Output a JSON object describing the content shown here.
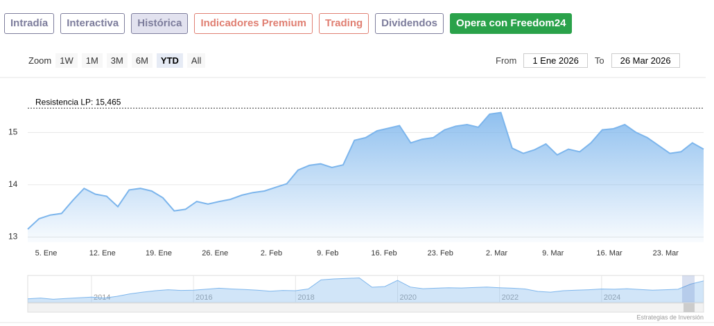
{
  "tabs": [
    {
      "label": "Intradía",
      "color": "#7d7d9c"
    },
    {
      "label": "Interactiva",
      "color": "#7d7d9c"
    },
    {
      "label": "Histórica",
      "color": "#7d7d9c"
    },
    {
      "label": "Indicadores Premium",
      "color": "#e07f72"
    },
    {
      "label": "Trading",
      "color": "#e07f72"
    },
    {
      "label": "Dividendos",
      "color": "#7d7d9c"
    },
    {
      "label": "Opera con Freedom24",
      "color": "#ffffff",
      "background": "#2aa24a"
    }
  ],
  "active_tab": 2,
  "zoom": {
    "label": "Zoom",
    "buttons": [
      "1W",
      "1M",
      "3M",
      "6M",
      "YTD",
      "All"
    ],
    "selected": 4
  },
  "range": {
    "from_label": "From",
    "from": "1 Ene 2026",
    "to_label": "To",
    "to": "26 Mar 2026"
  },
  "credits": "Estrategias de Inversión",
  "chart_data": [
    {
      "type": "area",
      "color": "#7cb5ec",
      "categories": [
        null,
        null,
        "5. Ene",
        null,
        null,
        null,
        null,
        "12. Ene",
        null,
        null,
        null,
        null,
        "19. Ene",
        null,
        null,
        null,
        null,
        "26. Ene",
        null,
        null,
        null,
        null,
        "2. Feb",
        null,
        null,
        null,
        null,
        "9. Feb",
        null,
        null,
        null,
        null,
        "16. Feb",
        null,
        null,
        null,
        null,
        "23. Feb",
        null,
        null,
        null,
        null,
        "2. Mar",
        null,
        null,
        null,
        null,
        "9. Mar",
        null,
        null,
        null,
        null,
        "16. Mar",
        null,
        null,
        null,
        null,
        "23. Mar",
        null,
        null,
        null
      ],
      "values": [
        13.15,
        13.35,
        13.42,
        13.45,
        13.7,
        13.93,
        13.82,
        13.78,
        13.58,
        13.9,
        13.93,
        13.88,
        13.75,
        13.5,
        13.53,
        13.68,
        13.63,
        13.68,
        13.72,
        13.8,
        13.85,
        13.88,
        13.95,
        14.02,
        14.28,
        14.37,
        14.4,
        14.33,
        14.38,
        14.85,
        14.9,
        15.03,
        15.08,
        15.13,
        14.8,
        14.87,
        14.9,
        15.05,
        15.12,
        15.15,
        15.1,
        15.35,
        15.38,
        14.7,
        14.6,
        14.67,
        14.78,
        14.57,
        14.68,
        14.63,
        14.8,
        15.05,
        15.07,
        15.15,
        15.0,
        14.9,
        14.75,
        14.6,
        14.63,
        14.8,
        14.68
      ],
      "ylim": [
        12.9,
        16.05
      ],
      "yticks": [
        13,
        14,
        15
      ],
      "grid": true,
      "plot_line": {
        "value": 15.465,
        "label": "Resistencia LP: 15,465"
      }
    },
    {
      "type": "area",
      "color": "#7cb5ec",
      "categories": [
        null,
        null,
        null,
        null,
        null,
        "2014",
        null,
        null,
        null,
        null,
        null,
        null,
        null,
        "2016",
        null,
        null,
        null,
        null,
        null,
        null,
        null,
        "2018",
        null,
        null,
        null,
        null,
        null,
        null,
        null,
        "2020",
        null,
        null,
        null,
        null,
        null,
        null,
        null,
        "2022",
        null,
        null,
        null,
        null,
        null,
        null,
        null,
        "2024",
        null,
        null,
        null,
        null,
        null,
        null,
        null,
        null
      ],
      "values": [
        7.5,
        7.8,
        7.3,
        7.6,
        7.9,
        8.2,
        7.8,
        8.5,
        9.5,
        10.2,
        10.8,
        11.2,
        10.9,
        11.0,
        11.4,
        11.8,
        11.5,
        11.3,
        11.0,
        10.6,
        10.9,
        10.8,
        11.5,
        15.2,
        15.6,
        15.8,
        16.0,
        12.2,
        12.5,
        15.0,
        12.3,
        11.6,
        11.8,
        12.0,
        11.9,
        12.1,
        12.3,
        12.0,
        11.8,
        11.5,
        10.5,
        10.2,
        10.8,
        11.0,
        11.2,
        11.5,
        11.4,
        11.6,
        11.3,
        11.0,
        11.2,
        11.4,
        13.5,
        14.8
      ],
      "ylim": [
        6,
        17
      ]
    }
  ]
}
